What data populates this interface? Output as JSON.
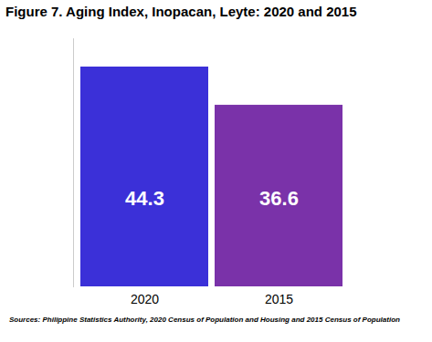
{
  "chart_data": {
    "type": "bar",
    "title": "Figure 7. Aging Index, Inopacan, Leyte: 2020 and 2015",
    "categories": [
      "2020",
      "2015"
    ],
    "values": [
      44.3,
      36.6
    ],
    "colors": [
      "#3b30d8",
      "#7a32a9"
    ],
    "ylim": [
      0,
      50
    ],
    "yticks": [],
    "data_labels": true,
    "tick_labels": "x",
    "caption": "Sources: Philippine Statistics Authority, 2020 Census of Population and Housing and 2015 Census of Population"
  }
}
